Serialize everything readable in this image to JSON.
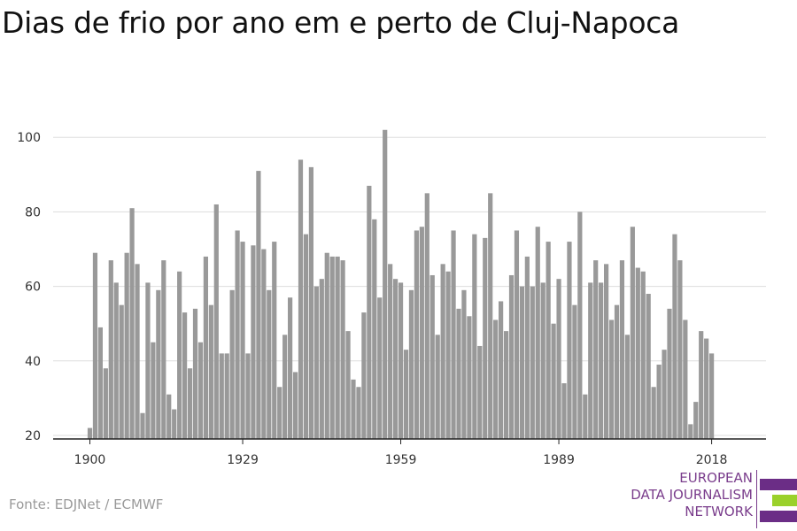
{
  "title": "Dias de frio por ano em e perto de Cluj-Napoca",
  "source": "Fonte: EDJNet / ECMWF",
  "logo": {
    "lines": [
      "EUROPEAN",
      "DATA JOURNALISM",
      "NETWORK"
    ],
    "colors": {
      "purple": "#6b2d86",
      "green": "#9ad12b",
      "text": "#7a3d8c"
    }
  },
  "colors": {
    "bar": "#999999",
    "grid": "#dddddd",
    "axis": "#222222",
    "text": "#333333"
  },
  "chart_data": {
    "type": "bar",
    "title": "Dias de frio por ano em e perto de Cluj-Napoca",
    "xlabel": "",
    "ylabel": "",
    "x_start": 1900,
    "x_end": 2020,
    "x_ticks": [
      1900,
      1929,
      1959,
      1989,
      2018
    ],
    "y_ticks": [
      20,
      40,
      60,
      80,
      100
    ],
    "ylim": [
      20,
      104
    ],
    "grid": true,
    "values": [
      22,
      69,
      49,
      38,
      67,
      61,
      55,
      69,
      81,
      66,
      26,
      61,
      45,
      59,
      67,
      31,
      27,
      64,
      53,
      38,
      54,
      45,
      68,
      55,
      82,
      42,
      42,
      59,
      75,
      72,
      42,
      71,
      91,
      70,
      59,
      72,
      33,
      47,
      57,
      37,
      94,
      74,
      92,
      60,
      62,
      69,
      68,
      68,
      67,
      48,
      35,
      33,
      53,
      87,
      78,
      57,
      102,
      66,
      62,
      61,
      43,
      59,
      75,
      76,
      85,
      63,
      47,
      66,
      64,
      75,
      54,
      59,
      52,
      74,
      44,
      73,
      85,
      51,
      56,
      48,
      63,
      75,
      60,
      68,
      60,
      76,
      61,
      72,
      50,
      62,
      34,
      72,
      55,
      80,
      31,
      61,
      67,
      61,
      66,
      51,
      55,
      67,
      47,
      76,
      65,
      64,
      58,
      33,
      39,
      43,
      54,
      74,
      67,
      51,
      23,
      29,
      48,
      46,
      42
    ]
  }
}
